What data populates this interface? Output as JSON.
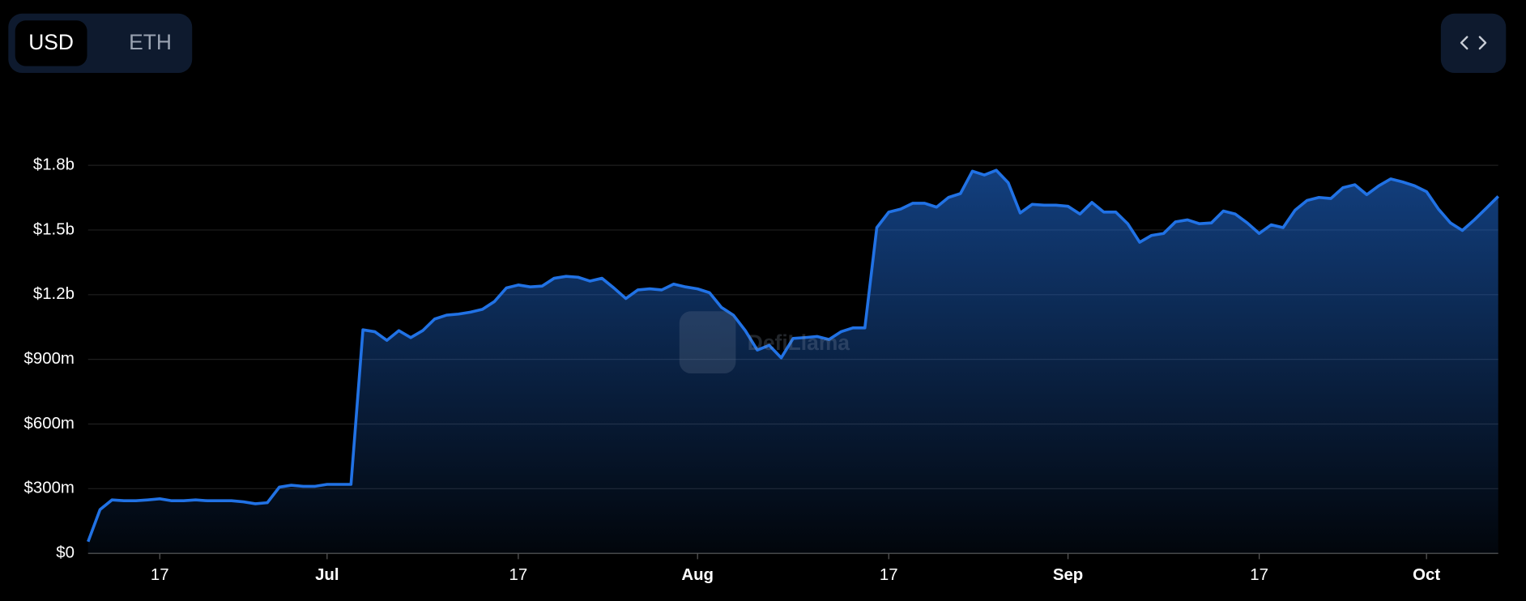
{
  "toggle": {
    "options": [
      "USD",
      "ETH"
    ],
    "selected": 0
  },
  "watermark": "DefiLlama",
  "chart_data": {
    "type": "area",
    "color": "#2172e5",
    "categories": [
      null,
      null,
      null,
      null,
      null,
      null,
      "17",
      null,
      null,
      null,
      null,
      null,
      null,
      null,
      null,
      null,
      null,
      null,
      null,
      null,
      "Jul",
      null,
      null,
      null,
      null,
      null,
      null,
      null,
      null,
      null,
      null,
      null,
      null,
      null,
      null,
      null,
      "17",
      null,
      null,
      null,
      null,
      null,
      null,
      null,
      null,
      null,
      null,
      null,
      null,
      null,
      null,
      "Aug",
      null,
      null,
      null,
      null,
      null,
      null,
      null,
      null,
      null,
      null,
      null,
      null,
      null,
      null,
      null,
      "17",
      null,
      null,
      null,
      null,
      null,
      null,
      null,
      null,
      null,
      null,
      null,
      null,
      null,
      null,
      "Sep",
      null,
      null,
      null,
      null,
      null,
      null,
      null,
      null,
      null,
      null,
      null,
      null,
      null,
      null,
      null,
      "17",
      null,
      null,
      null,
      null,
      null,
      null,
      null,
      null,
      null,
      null,
      null,
      null,
      null,
      "Oct",
      null,
      null,
      null,
      null,
      null,
      null
    ],
    "values": [
      54000000,
      203000000,
      248000000,
      244000000,
      244000000,
      248000000,
      253000000,
      244000000,
      244000000,
      248000000,
      244000000,
      244000000,
      244000000,
      239000000,
      230000000,
      235000000,
      307000000,
      316000000,
      311000000,
      311000000,
      320000000,
      320000000,
      320000000,
      1037000000,
      1028000000,
      988000000,
      1033000000,
      1001000000,
      1033000000,
      1087000000,
      1105000000,
      1110000000,
      1119000000,
      1132000000,
      1168000000,
      1231000000,
      1245000000,
      1236000000,
      1240000000,
      1276000000,
      1285000000,
      1281000000,
      1263000000,
      1276000000,
      1231000000,
      1182000000,
      1222000000,
      1227000000,
      1222000000,
      1249000000,
      1236000000,
      1227000000,
      1209000000,
      1141000000,
      1105000000,
      1033000000,
      943000000,
      965000000,
      907000000,
      997000000,
      1001000000,
      1006000000,
      992000000,
      1028000000,
      1046000000,
      1046000000,
      1511000000,
      1583000000,
      1597000000,
      1624000000,
      1624000000,
      1606000000,
      1651000000,
      1669000000,
      1773000000,
      1755000000,
      1777000000,
      1719000000,
      1579000000,
      1619000000,
      1615000000,
      1615000000,
      1610000000,
      1574000000,
      1628000000,
      1583000000,
      1583000000,
      1529000000,
      1443000000,
      1475000000,
      1484000000,
      1538000000,
      1547000000,
      1529000000,
      1533000000,
      1588000000,
      1574000000,
      1533000000,
      1484000000,
      1524000000,
      1511000000,
      1592000000,
      1637000000,
      1651000000,
      1646000000,
      1696000000,
      1710000000,
      1664000000,
      1705000000,
      1737000000,
      1723000000,
      1705000000,
      1678000000,
      1597000000,
      1533000000,
      1498000000,
      1547000000,
      1601000000,
      1656000000
    ],
    "ylim": [
      0,
      1800000000
    ],
    "yticks": [
      {
        "value": 0,
        "label": "$0"
      },
      {
        "value": 300000000,
        "label": "$300m"
      },
      {
        "value": 600000000,
        "label": "$600m"
      },
      {
        "value": 900000000,
        "label": "$900m"
      },
      {
        "value": 1200000000,
        "label": "$1.2b"
      },
      {
        "value": 1500000000,
        "label": "$1.5b"
      },
      {
        "value": 1800000000,
        "label": "$1.8b"
      }
    ],
    "grid": true
  }
}
